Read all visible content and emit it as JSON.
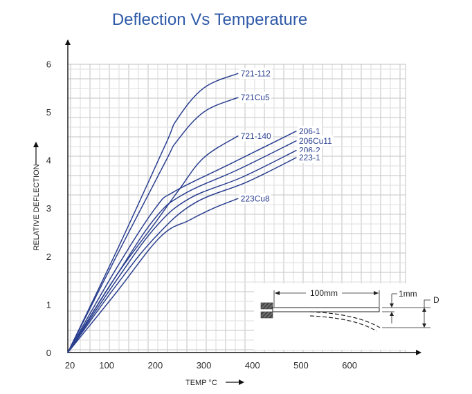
{
  "chart_data": {
    "type": "line",
    "title": "Deflection Vs Temperature",
    "xlabel": "TEMP °C",
    "ylabel": "RELATIVE DEFLECTION",
    "xlim": [
      20,
      700
    ],
    "ylim": [
      0,
      6.3
    ],
    "grid": true,
    "x_ticks": [
      "20",
      "100",
      "200",
      "300",
      "400",
      "500",
      "600"
    ],
    "y_ticks": [
      "0",
      "1",
      "2",
      "3",
      "4",
      "5",
      "6"
    ],
    "series": [
      {
        "name": "721-112",
        "color": "#2a3f8f",
        "x": [
          20,
          120,
          220,
          245,
          300,
          370
        ],
        "y": [
          0,
          2.1,
          4.3,
          4.85,
          5.5,
          5.8
        ]
      },
      {
        "name": "721Cu5",
        "color": "#2a3f8f",
        "x": [
          20,
          120,
          220,
          245,
          300,
          370
        ],
        "y": [
          0,
          2.0,
          3.95,
          4.4,
          5.0,
          5.3
        ]
      },
      {
        "name": "721-140",
        "color": "#2a3f8f",
        "x": [
          20,
          120,
          200,
          250,
          300,
          370
        ],
        "y": [
          0,
          1.6,
          2.7,
          3.4,
          4.05,
          4.5
        ]
      },
      {
        "name": "206-1",
        "color": "#2a3f8f",
        "x": [
          20,
          120,
          200,
          240,
          350,
          490
        ],
        "y": [
          0,
          1.75,
          3.0,
          3.35,
          3.9,
          4.6
        ]
      },
      {
        "name": "206Cu11",
        "color": "#2a3f8f",
        "x": [
          20,
          120,
          200,
          260,
          370,
          490
        ],
        "y": [
          0,
          1.6,
          2.8,
          3.3,
          3.8,
          4.4
        ]
      },
      {
        "name": "206-2",
        "color": "#2a3f8f",
        "x": [
          20,
          120,
          200,
          270,
          380,
          490
        ],
        "y": [
          0,
          1.5,
          2.6,
          3.2,
          3.65,
          4.2
        ]
      },
      {
        "name": "223-1",
        "color": "#2a3f8f",
        "x": [
          20,
          120,
          200,
          280,
          390,
          490
        ],
        "y": [
          0,
          1.4,
          2.4,
          3.1,
          3.55,
          4.05
        ]
      },
      {
        "name": "223Cu8",
        "color": "#2a3f8f",
        "x": [
          20,
          120,
          210,
          270,
          320,
          370
        ],
        "y": [
          0,
          1.25,
          2.4,
          2.75,
          3.0,
          3.2
        ]
      }
    ]
  },
  "inset": {
    "length_label": "100mm",
    "offset_label": "1mm",
    "deflection_label": "D"
  },
  "colors": {
    "title": "#2f5aa8",
    "series": "#2a3f8f",
    "grid_major": "#cfcfcf",
    "grid_minor": "#e3e3e3"
  }
}
